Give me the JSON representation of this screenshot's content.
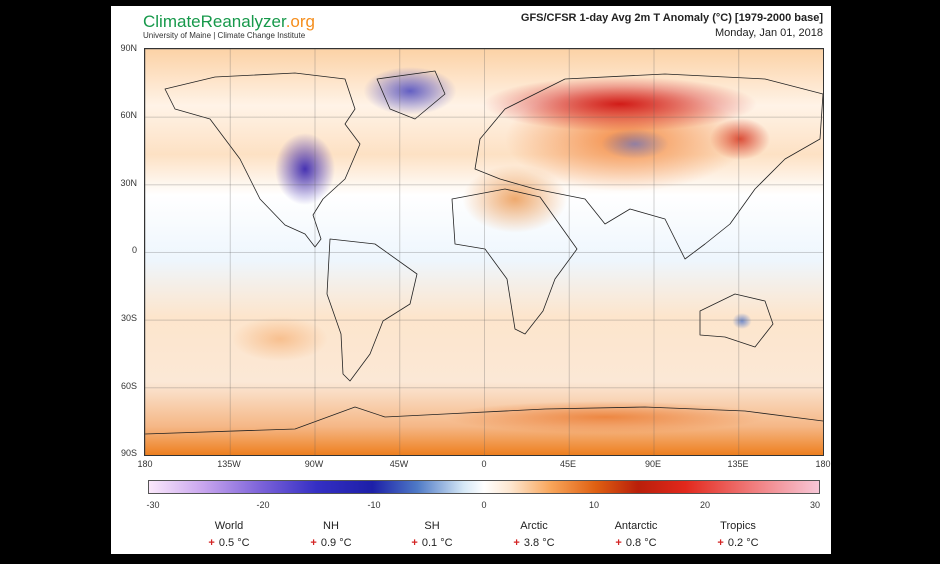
{
  "header": {
    "brand_climate": "Climate",
    "brand_reanalyzer": "Reanalyzer",
    "brand_tld": ".org",
    "subtitle": "University of Maine | Climate Change Institute",
    "title": "GFS/CFSR 1-day Avg 2m T Anomaly (°C) [1979-2000 base]",
    "date": "Monday, Jan 01, 2018"
  },
  "map": {
    "lat_labels": [
      "90N",
      "60N",
      "30N",
      "0",
      "30S",
      "60S",
      "90S"
    ],
    "lon_labels": [
      "180",
      "135W",
      "90W",
      "45W",
      "0",
      "45E",
      "90E",
      "135E",
      "180"
    ],
    "colors": {
      "warm": "#d7190c",
      "cold": "#3528b8",
      "neutral": "#ffffff"
    }
  },
  "colorbar": {
    "ticks": [
      "-30",
      "-20",
      "-10",
      "0",
      "10",
      "20",
      "30"
    ],
    "range": [
      -30,
      30
    ]
  },
  "stats": [
    {
      "name": "World",
      "sign": "+",
      "value": "0.5 °C"
    },
    {
      "name": "NH",
      "sign": "+",
      "value": "0.9 °C"
    },
    {
      "name": "SH",
      "sign": "+",
      "value": "0.1 °C"
    },
    {
      "name": "Arctic",
      "sign": "+",
      "value": "3.8 °C"
    },
    {
      "name": "Antarctic",
      "sign": "+",
      "value": "0.8 °C"
    },
    {
      "name": "Tropics",
      "sign": "+",
      "value": "0.2 °C"
    }
  ]
}
